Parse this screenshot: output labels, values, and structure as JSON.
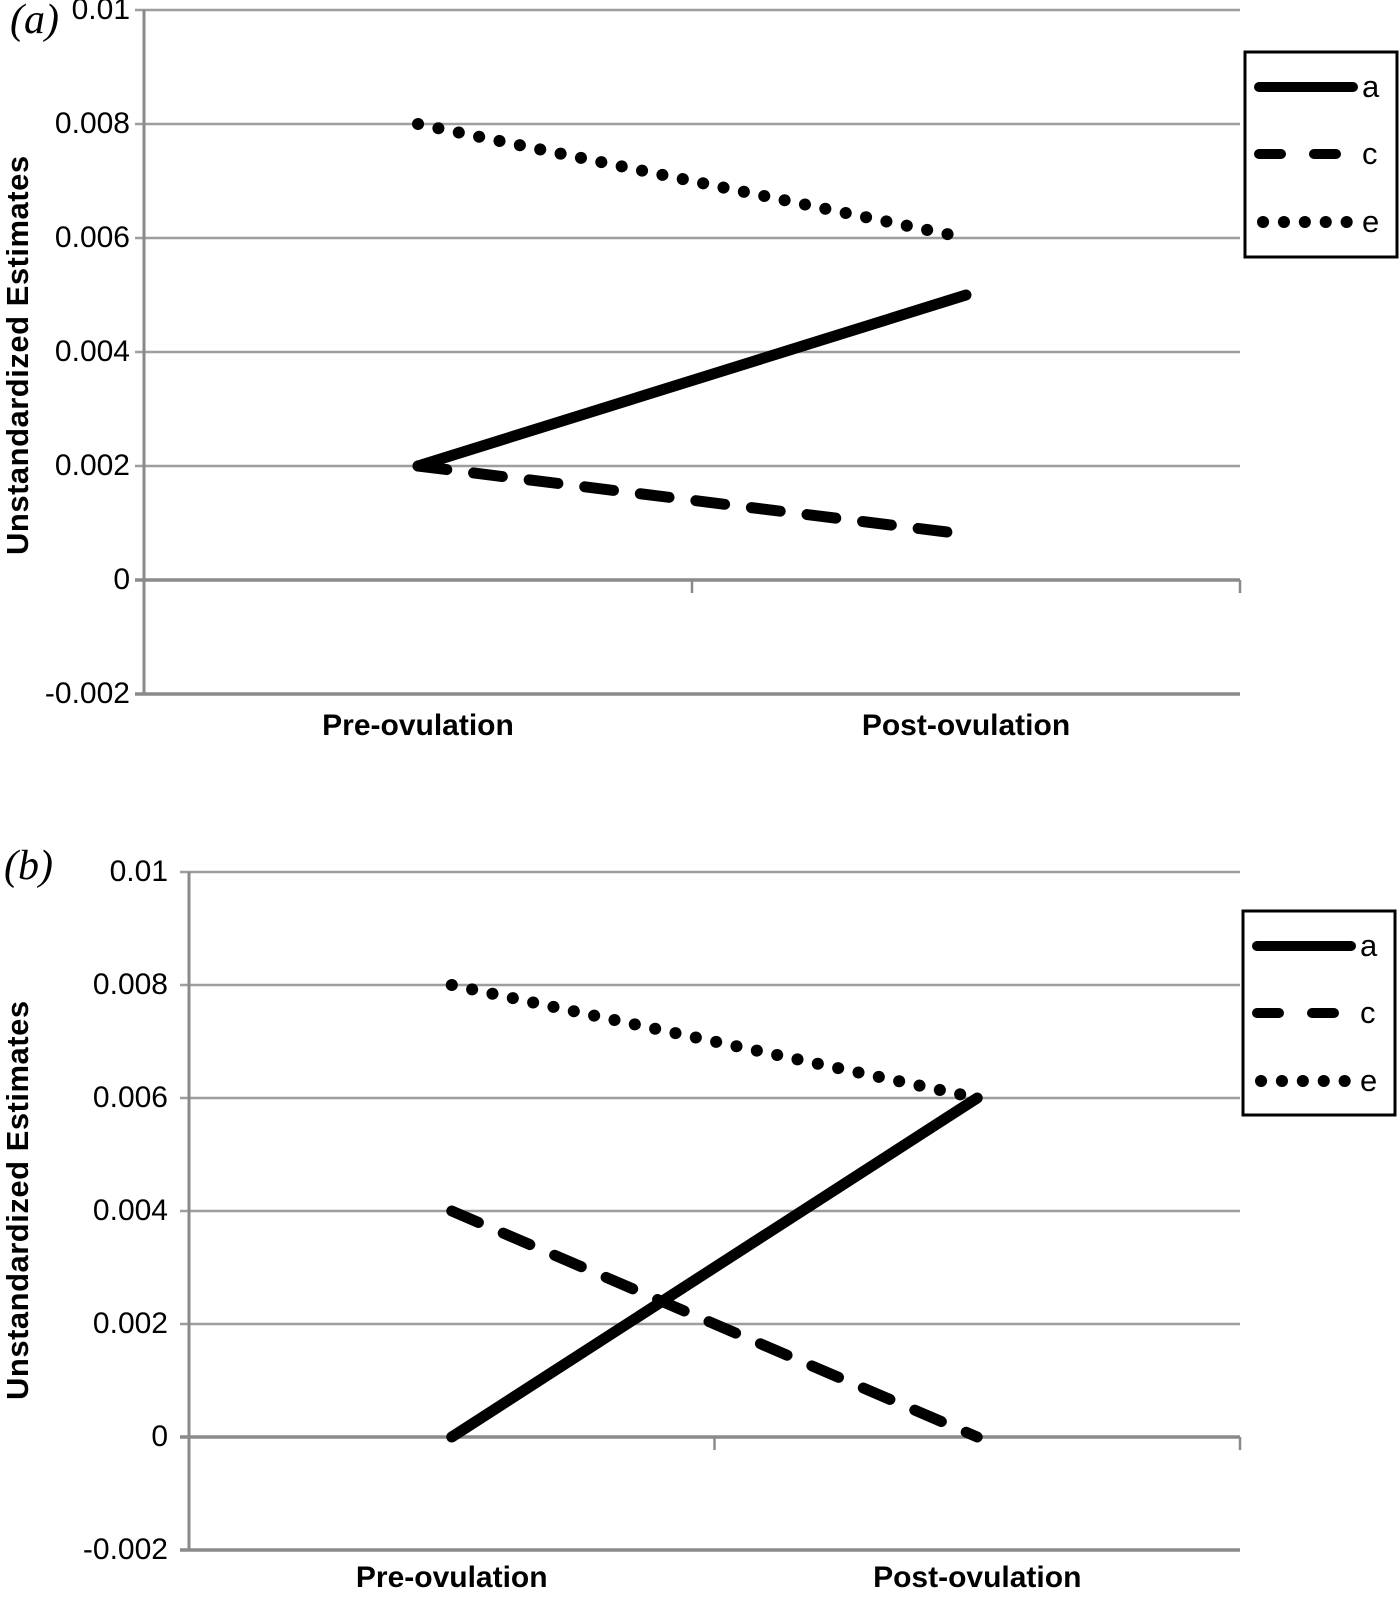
{
  "figure_title": "",
  "colors": {
    "series_line": "#000000",
    "gridline": "#9e9e9e",
    "axis_line": "#8a8a8a",
    "text": "#000000",
    "legend_border": "#000000",
    "background": "#ffffff"
  },
  "chart_data": [
    {
      "type": "line",
      "panel_label": "(a)",
      "ylabel": "Unstandardized Estimates",
      "xlabel": "",
      "categories": [
        "Pre-ovulation",
        "Post-ovulation"
      ],
      "ylim": [
        -0.002,
        0.01
      ],
      "yticks": [
        0.01,
        0.008,
        0.006,
        0.004,
        0.002,
        0,
        -0.002
      ],
      "ytick_labels": [
        "0.01",
        "0.008",
        "0.006",
        "0.004",
        "0.002",
        "0",
        "-0.002"
      ],
      "grid": true,
      "legend_position": "right-outside",
      "series": [
        {
          "name": "a",
          "style": "solid",
          "values": [
            0.002,
            0.005
          ]
        },
        {
          "name": "c",
          "style": "dashed",
          "values": [
            0.002,
            0.0008
          ]
        },
        {
          "name": "e",
          "style": "dotted",
          "values": [
            0.008,
            0.006
          ]
        }
      ]
    },
    {
      "type": "line",
      "panel_label": "(b)",
      "ylabel": "Unstandardized Estimates",
      "xlabel": "",
      "categories": [
        "Pre-ovulation",
        "Post-ovulation"
      ],
      "ylim": [
        -0.002,
        0.01
      ],
      "yticks": [
        0.01,
        0.008,
        0.006,
        0.004,
        0.002,
        0,
        -0.002
      ],
      "ytick_labels": [
        "0.01",
        "0.008",
        "0.006",
        "0.004",
        "0.002",
        "0",
        "-0.002"
      ],
      "grid": true,
      "legend_position": "right-outside",
      "series": [
        {
          "name": "a",
          "style": "solid",
          "values": [
            0,
            0.006
          ]
        },
        {
          "name": "c",
          "style": "dashed",
          "values": [
            0.004,
            0
          ]
        },
        {
          "name": "e",
          "style": "dotted",
          "values": [
            0.008,
            0.006
          ]
        }
      ]
    }
  ]
}
